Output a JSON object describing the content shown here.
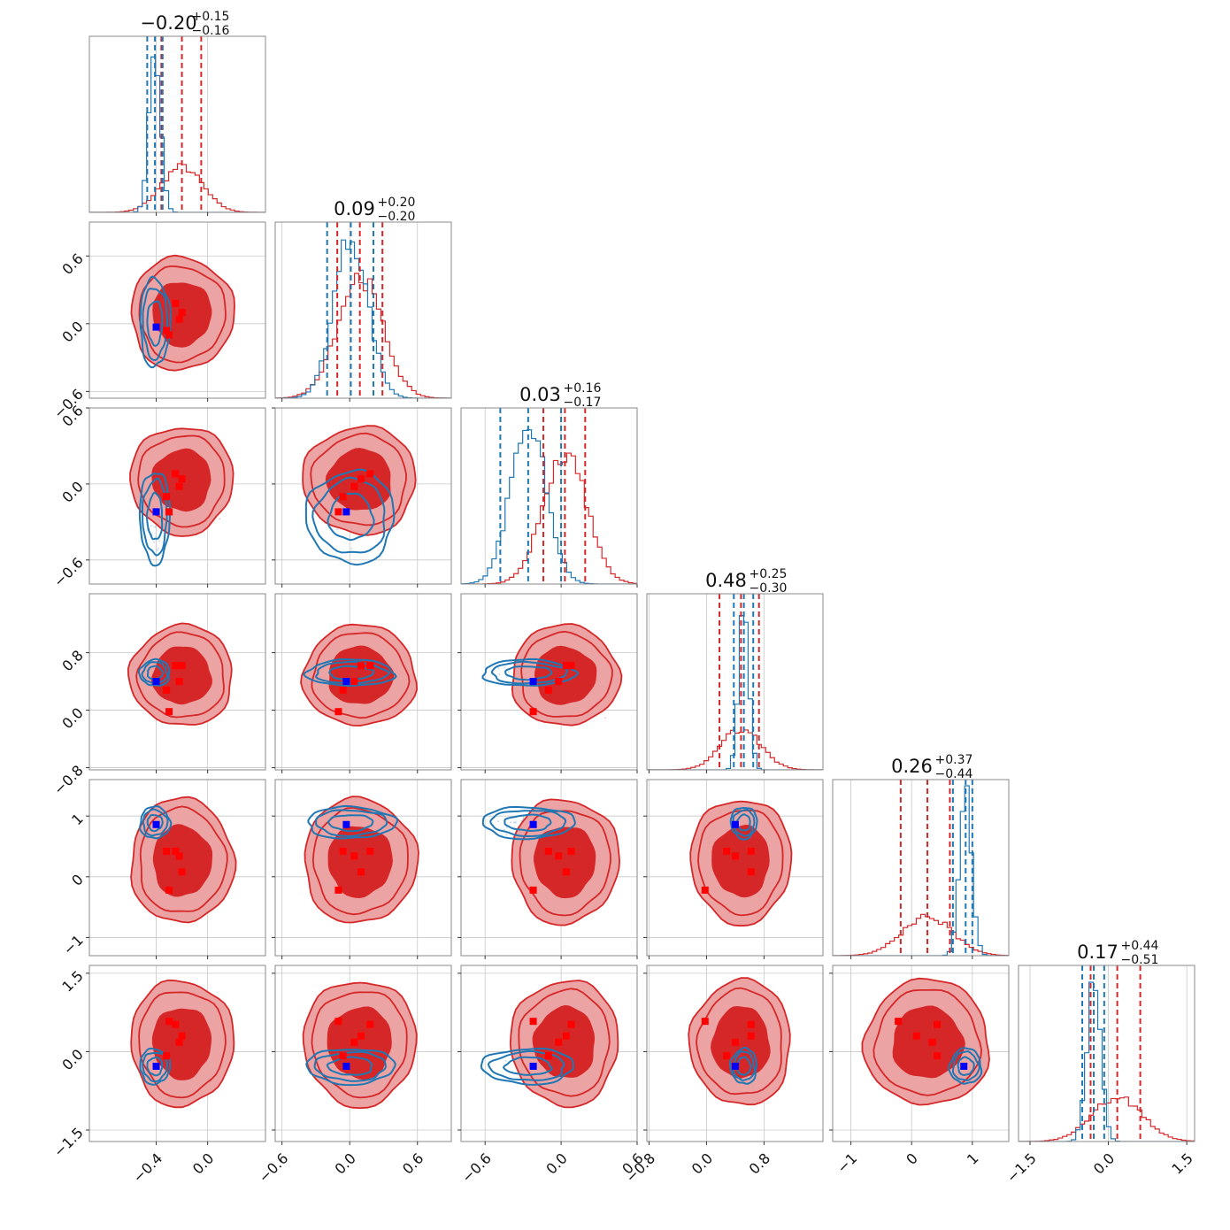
{
  "chart_data": {
    "type": "corner",
    "n_params": 6,
    "colors": {
      "red": "#d62728",
      "red_fill_light": "#eba3a4",
      "red_fill_mid": "#e06466",
      "blue": "#1f77b4",
      "marker_red": "#ff0000",
      "marker_blue": "#0000ff"
    },
    "titles": [
      {
        "median": "−0.20",
        "plus": "+0.15",
        "minus": "−0.16"
      },
      {
        "median": "0.09",
        "plus": "+0.20",
        "minus": "−0.20"
      },
      {
        "median": "0.03",
        "plus": "+0.16",
        "minus": "−0.17"
      },
      {
        "median": "0.48",
        "plus": "+0.25",
        "minus": "−0.30"
      },
      {
        "median": "0.26",
        "plus": "+0.37",
        "minus": "−0.44"
      },
      {
        "median": "0.17",
        "plus": "+0.44",
        "minus": "−0.51"
      }
    ],
    "ranges": [
      [
        -0.92,
        0.45
      ],
      [
        -0.66,
        0.9
      ],
      [
        -0.79,
        0.6
      ],
      [
        -0.83,
        1.62
      ],
      [
        -1.3,
        1.6
      ],
      [
        -1.72,
        1.65
      ]
    ],
    "x_ticks": [
      {
        "values": [
          -0.4,
          0.0
        ],
        "labels": [
          "−0.4",
          "0.0"
        ]
      },
      {
        "values": [
          -0.6,
          0.0,
          0.6
        ],
        "labels": [
          "−0.6",
          "0.0",
          "0.6"
        ]
      },
      {
        "values": [
          -0.6,
          0.0,
          0.6
        ],
        "labels": [
          "−0.6",
          "0.0",
          "0.6"
        ]
      },
      {
        "values": [
          -0.8,
          0.0,
          0.8
        ],
        "labels": [
          "−0.8",
          "0.0",
          "0.8"
        ]
      },
      {
        "values": [
          -1,
          0,
          1
        ],
        "labels": [
          "−1",
          "0",
          "1"
        ]
      },
      {
        "values": [
          -1.5,
          0.0,
          1.5
        ],
        "labels": [
          "−1.5",
          "0.0",
          "1.5"
        ]
      }
    ],
    "y_ticks": [
      null,
      {
        "values": [
          -0.6,
          0.0,
          0.6
        ],
        "labels": [
          "−0.6",
          "0.0",
          "0.6"
        ]
      },
      {
        "values": [
          -0.6,
          0.0,
          0.6
        ],
        "labels": [
          "−0.6",
          "0.0",
          "0.6"
        ]
      },
      {
        "values": [
          -0.8,
          0.0,
          0.8
        ],
        "labels": [
          "−0.8",
          "0.0",
          "0.8"
        ]
      },
      {
        "values": [
          -1,
          0,
          1
        ],
        "labels": [
          "−1",
          "0",
          "1"
        ]
      },
      {
        "values": [
          -1.5,
          0.0,
          1.5
        ],
        "labels": [
          "−1.5",
          "0.0",
          "1.5"
        ]
      }
    ],
    "red_posterior": {
      "means": [
        -0.2,
        0.09,
        0.03,
        0.48,
        0.26,
        0.17
      ],
      "sigmas": [
        0.16,
        0.2,
        0.17,
        0.28,
        0.41,
        0.48
      ],
      "quantile_lines": [
        [
          -0.36,
          -0.2,
          -0.05
        ],
        [
          -0.11,
          0.09,
          0.29
        ],
        [
          -0.14,
          0.03,
          0.19
        ],
        [
          0.18,
          0.48,
          0.73
        ],
        [
          -0.18,
          0.26,
          0.63
        ],
        [
          -0.34,
          0.17,
          0.61
        ]
      ]
    },
    "blue_posterior": {
      "means": [
        -0.41,
        0.01,
        -0.26,
        0.52,
        0.89,
        -0.28
      ],
      "sigmas": [
        0.045,
        0.15,
        0.14,
        0.07,
        0.1,
        0.13
      ],
      "quantile_lines": [
        [
          -0.47,
          -0.41,
          -0.35
        ],
        [
          -0.2,
          0.01,
          0.21
        ],
        [
          -0.48,
          -0.26,
          0.0
        ],
        [
          0.38,
          0.52,
          0.65
        ],
        [
          0.68,
          0.89,
          1.0
        ],
        [
          -0.5,
          -0.28,
          -0.08
        ]
      ]
    },
    "red_markers": [
      [
        -0.25,
        -0.2,
        -0.22,
        -0.32,
        -0.3
      ],
      [
        0.18,
        0.1,
        0.04,
        -0.06,
        -0.1
      ],
      [
        0.08,
        0.04,
        -0.02,
        -0.1,
        -0.22
      ],
      [
        0.62,
        0.62,
        0.4,
        0.28,
        -0.02
      ],
      [
        0.42,
        0.08,
        0.34,
        0.42,
        -0.22
      ],
      [
        0.52,
        0.3,
        0.18,
        -0.08,
        0.58
      ]
    ],
    "blue_marker": [
      -0.4,
      -0.03,
      -0.22,
      0.4,
      0.86,
      -0.28
    ],
    "grid": true
  }
}
